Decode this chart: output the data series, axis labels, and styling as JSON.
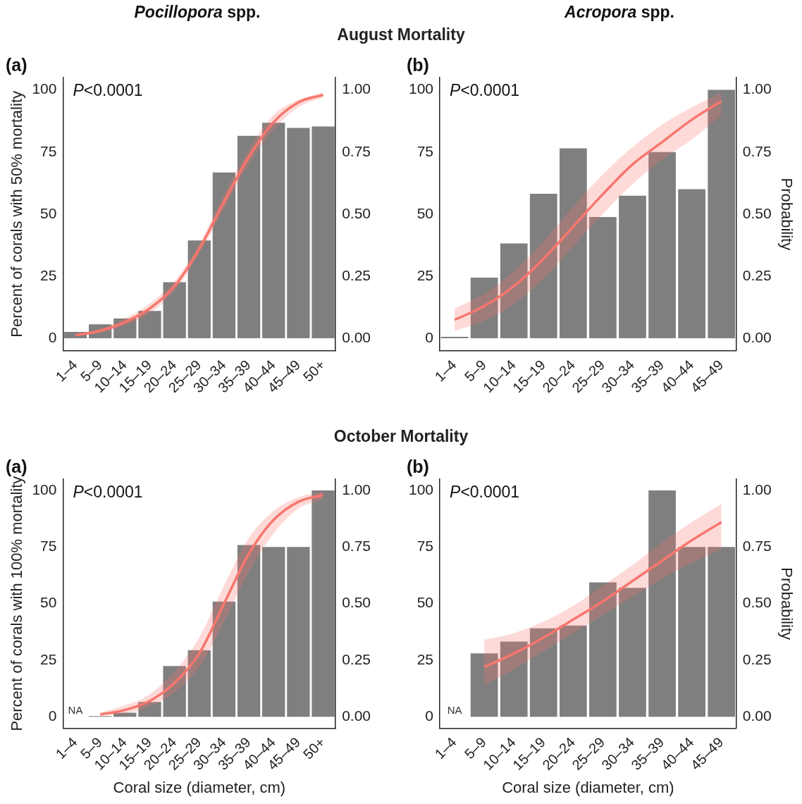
{
  "chart_data": [
    {
      "type": "bar",
      "title": "Pocillopora spp.",
      "subtitle": "August Mortality",
      "ylabel": "Percent of corals with 50% mortality",
      "annotations": [
        "(a)",
        "P<0.0001"
      ],
      "categories": [
        "1–4",
        "5–9",
        "10–14",
        "15–19",
        "20–24",
        "25–29",
        "30–34",
        "35–39",
        "40–44",
        "45–49",
        "50+"
      ],
      "series": [
        {
          "color": "#7f7f7f",
          "values": [
            2.6,
            5.6,
            8,
            11,
            22.6,
            39.4,
            66.8,
            81.5,
            86.8,
            84.7,
            85.3
          ]
        },
        {
          "type": "line",
          "axis": "y2",
          "color": "#f8766d",
          "values": [
            0.012,
            0.03,
            0.065,
            0.12,
            0.21,
            0.36,
            0.55,
            0.73,
            0.87,
            0.95,
            0.98
          ],
          "lower": [
            0.008,
            0.022,
            0.052,
            0.1,
            0.19,
            0.34,
            0.52,
            0.7,
            0.84,
            0.93,
            0.97
          ],
          "upper": [
            0.018,
            0.04,
            0.08,
            0.14,
            0.23,
            0.38,
            0.58,
            0.76,
            0.9,
            0.96,
            0.99
          ]
        }
      ],
      "ylim": [
        -5,
        105
      ],
      "yticks": [
        0,
        25,
        50,
        75,
        100
      ],
      "y2lim": [
        -0.05,
        1.05
      ],
      "y2ticks": [
        {
          "value": 0,
          "label": "0.00"
        },
        {
          "value": 0.25,
          "label": "0.25"
        },
        {
          "value": 0.5,
          "label": "0.50"
        },
        {
          "value": 0.75,
          "label": "0.75"
        },
        {
          "value": 1,
          "label": "1.00"
        }
      ]
    },
    {
      "type": "bar",
      "title": "Acropora spp.",
      "y2label": "Probability",
      "annotations": [
        "(b)",
        "P<0.0001"
      ],
      "categories": [
        "1–4",
        "5–9",
        "10–14",
        "15–19",
        "20–24",
        "25–29",
        "30–34",
        "35–39",
        "40–44",
        "45–49"
      ],
      "series": [
        {
          "color": "#7f7f7f",
          "values": [
            0.6,
            24.4,
            38.2,
            58.2,
            76.5,
            48.8,
            57.4,
            75,
            60,
            100
          ]
        },
        {
          "type": "line",
          "axis": "y2",
          "color": "#f8766d",
          "values": [
            0.074,
            0.13,
            0.21,
            0.32,
            0.45,
            0.58,
            0.7,
            0.79,
            0.88,
            0.955
          ],
          "lower": [
            0.03,
            0.07,
            0.14,
            0.24,
            0.37,
            0.5,
            0.62,
            0.72,
            0.8,
            0.9
          ],
          "upper": [
            0.12,
            0.18,
            0.27,
            0.39,
            0.53,
            0.66,
            0.77,
            0.86,
            0.93,
            0.99
          ]
        }
      ],
      "ylim": [
        -5,
        105
      ],
      "yticks": [
        0,
        25,
        50,
        75,
        100
      ],
      "y2lim": [
        -0.05,
        1.05
      ],
      "y2ticks": [
        {
          "value": 0,
          "label": "0.00"
        },
        {
          "value": 0.25,
          "label": "0.25"
        },
        {
          "value": 0.5,
          "label": "0.50"
        },
        {
          "value": 0.75,
          "label": "0.75"
        },
        {
          "value": 1,
          "label": "1.00"
        }
      ]
    },
    {
      "type": "bar",
      "subtitle": "October Mortality",
      "ylabel": "Percent of corals with 100% mortality",
      "xlabel": "Coral size (diameter, cm)",
      "annotations": [
        "(a)",
        "P<0.0001",
        "NA"
      ],
      "categories": [
        "1–4",
        "5–9",
        "10–14",
        "15–19",
        "20–24",
        "25–29",
        "30–34",
        "35–39",
        "40–44",
        "45–49",
        "50+"
      ],
      "series": [
        {
          "color": "#7f7f7f",
          "values": [
            null,
            0.3,
            1.8,
            6.5,
            22.4,
            29.4,
            50.9,
            75.9,
            75,
            75,
            100
          ]
        },
        {
          "type": "line",
          "axis": "y2",
          "color": "#f8766d",
          "values": [
            null,
            0.01,
            0.03,
            0.07,
            0.15,
            0.28,
            0.5,
            0.72,
            0.87,
            0.95,
            0.98
          ],
          "lower": [
            null,
            0.004,
            0.015,
            0.045,
            0.11,
            0.22,
            0.42,
            0.64,
            0.81,
            0.92,
            0.96
          ],
          "upper": [
            null,
            0.02,
            0.05,
            0.1,
            0.2,
            0.35,
            0.58,
            0.79,
            0.91,
            0.97,
            0.995
          ]
        }
      ],
      "ylim": [
        -5,
        105
      ],
      "yticks": [
        0,
        25,
        50,
        75,
        100
      ],
      "y2lim": [
        -0.05,
        1.05
      ],
      "y2ticks": [
        {
          "value": 0,
          "label": "0.00"
        },
        {
          "value": 0.25,
          "label": "0.25"
        },
        {
          "value": 0.5,
          "label": "0.50"
        },
        {
          "value": 0.75,
          "label": "0.75"
        },
        {
          "value": 1,
          "label": "1.00"
        }
      ]
    },
    {
      "type": "bar",
      "xlabel": "Coral size (diameter, cm)",
      "y2label": "Probability",
      "annotations": [
        "(b)",
        "P<0.0001",
        "NA"
      ],
      "categories": [
        "1–4",
        "5–9",
        "10–14",
        "15–19",
        "20–24",
        "25–29",
        "30–34",
        "35–39",
        "40–44",
        "45–49"
      ],
      "series": [
        {
          "color": "#7f7f7f",
          "values": [
            null,
            28,
            33.2,
            39.1,
            40.3,
            59.4,
            57,
            100,
            75,
            75
          ]
        },
        {
          "type": "line",
          "axis": "y2",
          "color": "#f8766d",
          "values": [
            null,
            0.22,
            0.28,
            0.35,
            0.43,
            0.51,
            0.6,
            0.69,
            0.78,
            0.86
          ],
          "lower": [
            null,
            0.14,
            0.21,
            0.29,
            0.37,
            0.45,
            0.53,
            0.61,
            0.68,
            0.74
          ],
          "upper": [
            null,
            0.34,
            0.37,
            0.42,
            0.49,
            0.58,
            0.67,
            0.77,
            0.86,
            0.94
          ]
        }
      ],
      "ylim": [
        -5,
        105
      ],
      "yticks": [
        0,
        25,
        50,
        75,
        100
      ],
      "y2lim": [
        -0.05,
        1.05
      ],
      "y2ticks": [
        {
          "value": 0,
          "label": "0.00"
        },
        {
          "value": 0.25,
          "label": "0.25"
        },
        {
          "value": 0.5,
          "label": "0.50"
        },
        {
          "value": 0.75,
          "label": "0.75"
        },
        {
          "value": 1,
          "label": "1.00"
        }
      ]
    }
  ]
}
